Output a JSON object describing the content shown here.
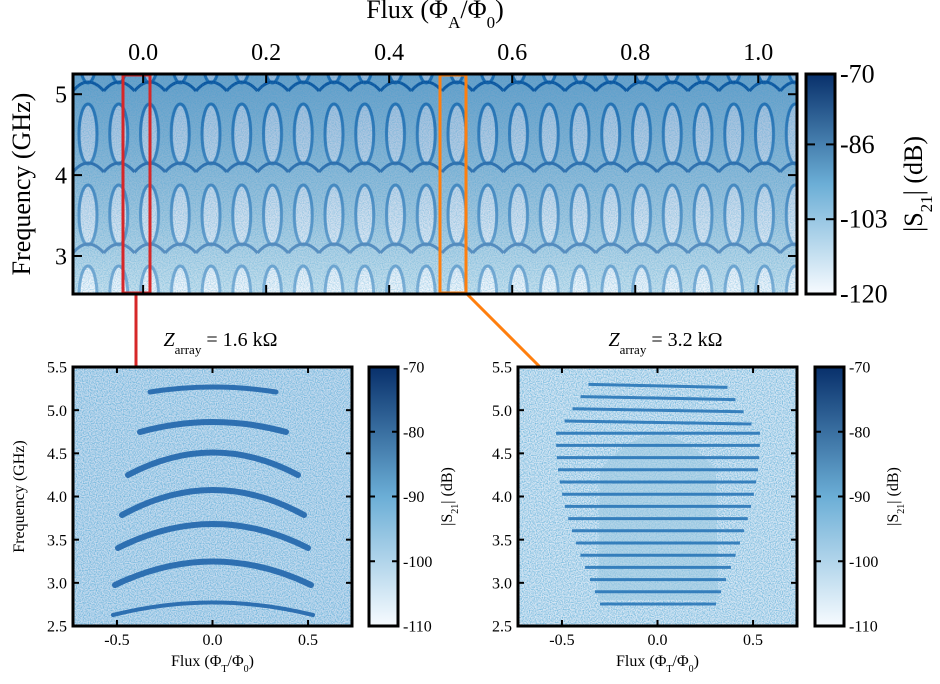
{
  "chart_data": [
    {
      "type": "heatmap",
      "xlabel": [
        "Flux (Φ",
        "A",
        "/Φ",
        "0",
        ")"
      ],
      "ylabel": "Frequency (GHz)",
      "xlim": [
        -0.114,
        1.063
      ],
      "xticks": [
        {
          "value": 0,
          "label": "0.0"
        },
        0.2,
        0.4,
        0.6,
        0.8,
        {
          "value": 1,
          "label": "1.0"
        }
      ],
      "ylim": [
        2.53,
        5.25
      ],
      "yticks": [
        3,
        4,
        5
      ],
      "xaxis_side": "top",
      "colorbar": {
        "label": [
          "|S",
          "21",
          "| (dB)"
        ],
        "lim": [
          -120,
          -70
        ],
        "ticks": [
          -120,
          -103,
          -86,
          -70
        ],
        "colors": [
          "#f7fbff",
          "#6baed6",
          "#08306b"
        ]
      }
    },
    {
      "type": "heatmap",
      "title": [
        "Z",
        "array",
        " = 1.6 kΩ"
      ],
      "xlabel": [
        "Flux (Φ",
        "T",
        "/Φ",
        "0",
        ")"
      ],
      "ylabel": "Frequency (GHz)",
      "xlim": [
        -0.73,
        0.73
      ],
      "xticks": [
        -0.5,
        {
          "value": 0,
          "label": "0.0"
        },
        0.5
      ],
      "ylim": [
        2.5,
        5.5
      ],
      "yticks": [
        2.5,
        {
          "value": 3,
          "label": "3.0"
        },
        3.5,
        {
          "value": 4,
          "label": "4.0"
        },
        4.5,
        {
          "value": 5,
          "label": "5.0"
        },
        5.5
      ],
      "xaxis_side": "bottom",
      "colorbar": {
        "label": [
          "|S",
          "21",
          "| (dB)"
        ],
        "lim": [
          -110,
          -70
        ],
        "ticks": [
          -110,
          -100,
          -90,
          -80,
          -70
        ],
        "colors": [
          "#f7fbff",
          "#6baed6",
          "#08306b"
        ]
      }
    },
    {
      "type": "heatmap",
      "title": [
        "Z",
        "array",
        " = 3.2 kΩ"
      ],
      "xlabel": [
        "Flux (Φ",
        "T",
        "/Φ",
        "0",
        ")"
      ],
      "xlim": [
        -0.73,
        0.73
      ],
      "xticks": [
        -0.5,
        {
          "value": 0,
          "label": "0.0"
        },
        0.5
      ],
      "ylim": [
        2.5,
        5.5
      ],
      "yticks": [
        2.5,
        {
          "value": 3,
          "label": "3.0"
        },
        3.5,
        {
          "value": 4,
          "label": "4.0"
        },
        4.5,
        {
          "value": 5,
          "label": "5.0"
        },
        5.5
      ],
      "xaxis_side": "bottom",
      "colorbar": {
        "label": [
          "|S",
          "21",
          "| (dB)"
        ],
        "lim": [
          -110,
          -70
        ],
        "ticks": [
          -110,
          -100,
          -90,
          -80,
          -70
        ],
        "colors": [
          "#f7fbff",
          "#6baed6",
          "#08306b"
        ]
      }
    }
  ]
}
